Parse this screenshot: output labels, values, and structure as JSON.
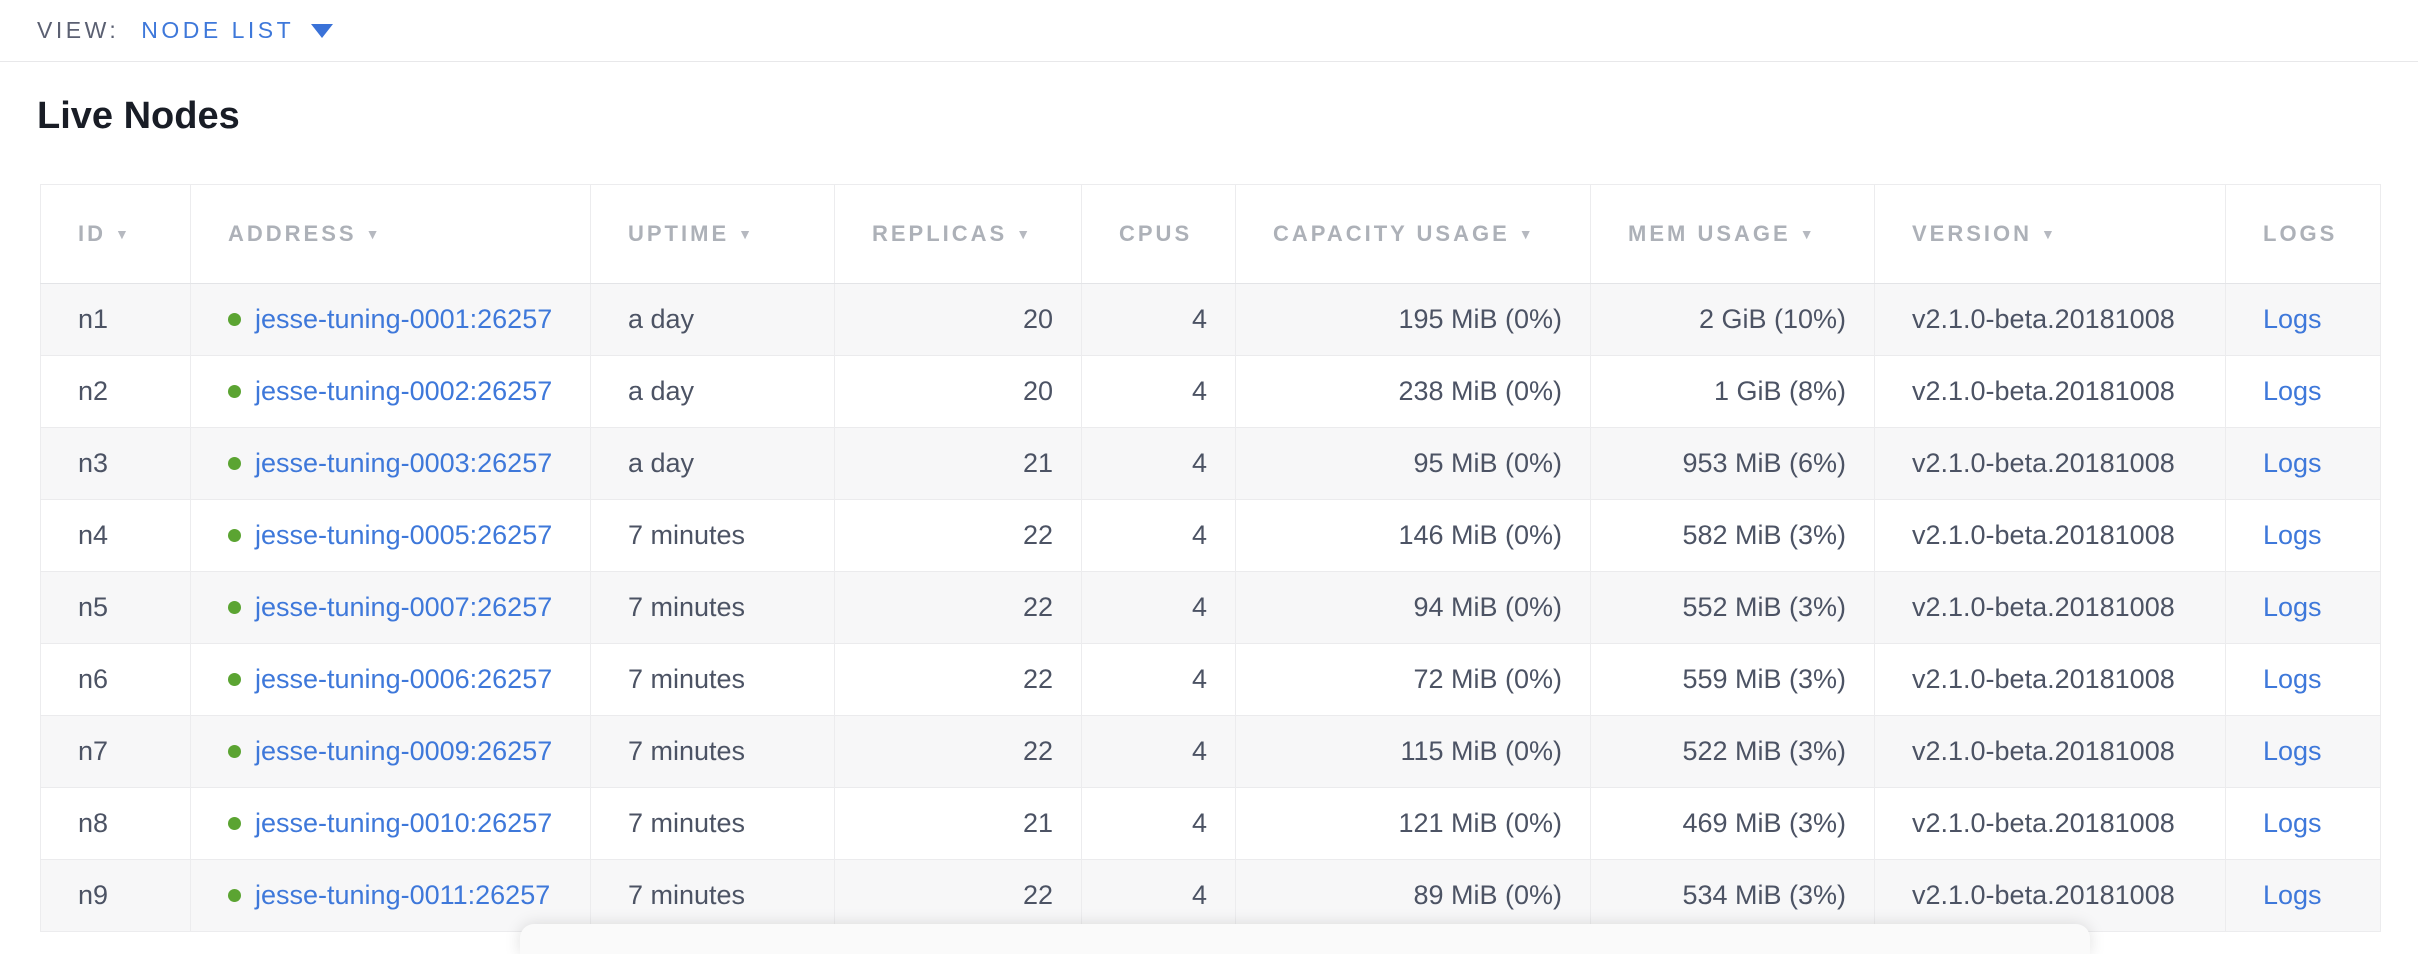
{
  "top_bar": {
    "view_label": "VIEW:",
    "view_value": "NODE LIST"
  },
  "page_title": "Live Nodes",
  "table": {
    "sort_icon": "▼",
    "columns": [
      {
        "label": "ID",
        "sortable": true
      },
      {
        "label": "ADDRESS",
        "sortable": true
      },
      {
        "label": "UPTIME",
        "sortable": true
      },
      {
        "label": "REPLICAS",
        "sortable": true
      },
      {
        "label": "CPUS",
        "sortable": false
      },
      {
        "label": "CAPACITY USAGE",
        "sortable": true
      },
      {
        "label": "MEM USAGE",
        "sortable": true
      },
      {
        "label": "VERSION",
        "sortable": true
      },
      {
        "label": "LOGS",
        "sortable": false
      }
    ],
    "rows": [
      {
        "id": "n1",
        "status": "live",
        "address": "jesse-tuning-0001:26257",
        "uptime": "a day",
        "replicas": "20",
        "cpus": "4",
        "capacity_usage": "195 MiB (0%)",
        "mem_usage": "2 GiB (10%)",
        "version": "v2.1.0-beta.20181008",
        "logs_label": "Logs"
      },
      {
        "id": "n2",
        "status": "live",
        "address": "jesse-tuning-0002:26257",
        "uptime": "a day",
        "replicas": "20",
        "cpus": "4",
        "capacity_usage": "238 MiB (0%)",
        "mem_usage": "1 GiB (8%)",
        "version": "v2.1.0-beta.20181008",
        "logs_label": "Logs"
      },
      {
        "id": "n3",
        "status": "live",
        "address": "jesse-tuning-0003:26257",
        "uptime": "a day",
        "replicas": "21",
        "cpus": "4",
        "capacity_usage": "95 MiB (0%)",
        "mem_usage": "953 MiB (6%)",
        "version": "v2.1.0-beta.20181008",
        "logs_label": "Logs"
      },
      {
        "id": "n4",
        "status": "live",
        "address": "jesse-tuning-0005:26257",
        "uptime": "7 minutes",
        "replicas": "22",
        "cpus": "4",
        "capacity_usage": "146 MiB (0%)",
        "mem_usage": "582 MiB (3%)",
        "version": "v2.1.0-beta.20181008",
        "logs_label": "Logs"
      },
      {
        "id": "n5",
        "status": "live",
        "address": "jesse-tuning-0007:26257",
        "uptime": "7 minutes",
        "replicas": "22",
        "cpus": "4",
        "capacity_usage": "94 MiB (0%)",
        "mem_usage": "552 MiB (3%)",
        "version": "v2.1.0-beta.20181008",
        "logs_label": "Logs"
      },
      {
        "id": "n6",
        "status": "live",
        "address": "jesse-tuning-0006:26257",
        "uptime": "7 minutes",
        "replicas": "22",
        "cpus": "4",
        "capacity_usage": "72 MiB (0%)",
        "mem_usage": "559 MiB (3%)",
        "version": "v2.1.0-beta.20181008",
        "logs_label": "Logs"
      },
      {
        "id": "n7",
        "status": "live",
        "address": "jesse-tuning-0009:26257",
        "uptime": "7 minutes",
        "replicas": "22",
        "cpus": "4",
        "capacity_usage": "115 MiB (0%)",
        "mem_usage": "522 MiB (3%)",
        "version": "v2.1.0-beta.20181008",
        "logs_label": "Logs"
      },
      {
        "id": "n8",
        "status": "live",
        "address": "jesse-tuning-0010:26257",
        "uptime": "7 minutes",
        "replicas": "21",
        "cpus": "4",
        "capacity_usage": "121 MiB (0%)",
        "mem_usage": "469 MiB (3%)",
        "version": "v2.1.0-beta.20181008",
        "logs_label": "Logs"
      },
      {
        "id": "n9",
        "status": "live",
        "address": "jesse-tuning-0011:26257",
        "uptime": "7 minutes",
        "replicas": "22",
        "cpus": "4",
        "capacity_usage": "89 MiB (0%)",
        "mem_usage": "534 MiB (3%)",
        "version": "v2.1.0-beta.20181008",
        "logs_label": "Logs"
      }
    ]
  },
  "colors": {
    "link_blue": "#3e78da",
    "live_dot_green": "#5ba432",
    "header_gray": "#adb1b8",
    "cell_text": "#4c5364",
    "row_alt_bg": "#f7f7f8"
  }
}
